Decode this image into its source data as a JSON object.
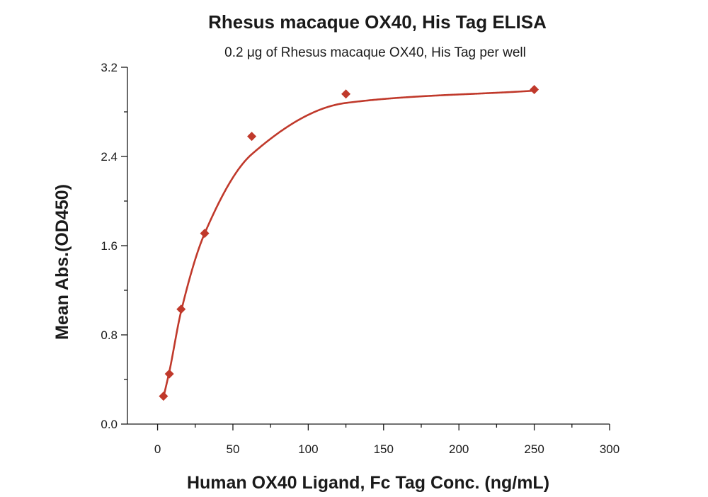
{
  "chart_data": {
    "type": "scatter",
    "title": "Rhesus macaque OX40, His Tag ELISA",
    "subtitle": "0.2 μg of Rhesus macaque OX40, His Tag per well",
    "xlabel": "Human OX40 Ligand, Fc Tag Conc. (ng/mL)",
    "ylabel": "Mean Abs.(OD450)",
    "xlim": [
      -20,
      300
    ],
    "ylim": [
      0,
      3.2
    ],
    "x_ticks": [
      "0",
      "50",
      "100",
      "150",
      "200",
      "250",
      "300"
    ],
    "y_ticks": [
      "0.0",
      "0.8",
      "1.6",
      "2.4",
      "3.2"
    ],
    "grid": false,
    "series": [
      {
        "x": [
          3.9,
          7.8,
          15.6,
          31.25,
          62.5,
          125,
          250
        ],
        "y": [
          0.25,
          0.45,
          1.03,
          1.71,
          2.58,
          2.96,
          3.0
        ],
        "marker": "diamond",
        "color": "#c0392b",
        "fit": "4PL"
      }
    ]
  }
}
